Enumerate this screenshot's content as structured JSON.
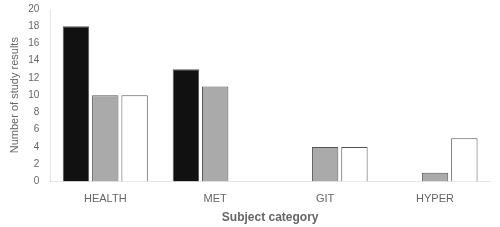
{
  "chart_data": {
    "type": "bar",
    "categories": [
      "HEALTH",
      "MET",
      "GIT",
      "HYPER"
    ],
    "series": [
      {
        "color": "#111111",
        "values": [
          18,
          13,
          0,
          0
        ]
      },
      {
        "color": "#aaaaaa",
        "values": [
          10,
          11,
          4,
          1
        ]
      },
      {
        "color": "#ffffff",
        "values": [
          10,
          0,
          4,
          5
        ]
      }
    ],
    "xlabel": "Subject category",
    "ylabel": "Number of study results",
    "ylim": [
      0,
      20
    ],
    "yticks": [
      0,
      2,
      4,
      6,
      8,
      10,
      12,
      14,
      16,
      18,
      20
    ],
    "grid": false
  }
}
